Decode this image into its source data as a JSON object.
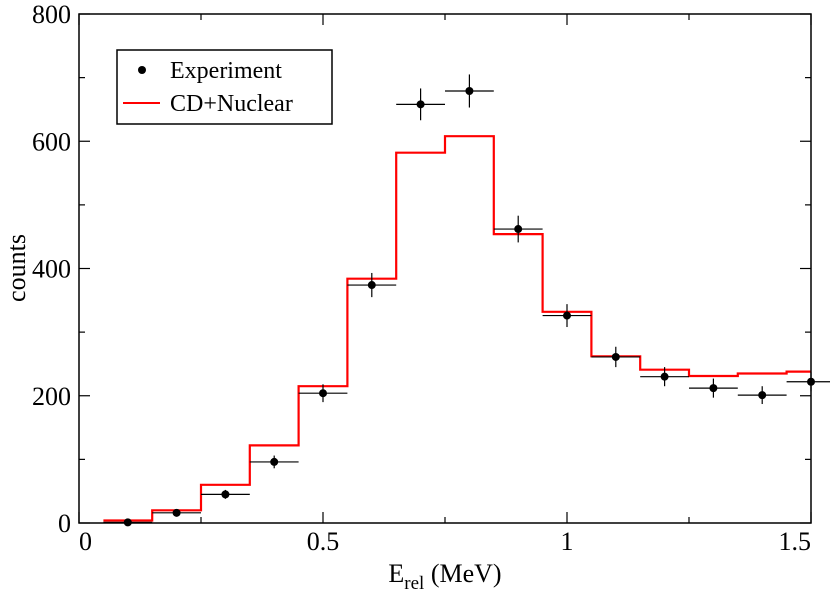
{
  "chart_data": {
    "type": "scatter+step",
    "xlabel_main": "E",
    "xlabel_sub": "rel",
    "xlabel_unit": "(MeV)",
    "ylabel": "counts",
    "xlim": [
      0,
      1.5
    ],
    "ylim": [
      0,
      800
    ],
    "x_ticks": [
      0,
      0.5,
      1,
      1.5
    ],
    "x_tick_labels": [
      "0",
      "0.5",
      "1",
      "1.5"
    ],
    "y_ticks": [
      0,
      200,
      400,
      600,
      800
    ],
    "y_tick_labels": [
      "0",
      "200",
      "400",
      "600",
      "800"
    ],
    "legend": {
      "placement": "top-left",
      "entries": [
        {
          "label": "Experiment",
          "marker": "dot",
          "color": "#000000"
        },
        {
          "label": "CD+Nuclear",
          "marker": "line",
          "color": "#ff0000"
        }
      ]
    },
    "series": [
      {
        "name": "Experiment",
        "kind": "points",
        "color": "#000000",
        "x_halfwidth": 0.05,
        "points": [
          {
            "x": 0.1,
            "y": 1,
            "yerr": 1
          },
          {
            "x": 0.2,
            "y": 16,
            "yerr": 4
          },
          {
            "x": 0.3,
            "y": 45,
            "yerr": 7
          },
          {
            "x": 0.4,
            "y": 96,
            "yerr": 10
          },
          {
            "x": 0.5,
            "y": 204,
            "yerr": 14
          },
          {
            "x": 0.6,
            "y": 374,
            "yerr": 19
          },
          {
            "x": 0.7,
            "y": 658,
            "yerr": 25
          },
          {
            "x": 0.8,
            "y": 679,
            "yerr": 26
          },
          {
            "x": 0.9,
            "y": 462,
            "yerr": 21
          },
          {
            "x": 1.0,
            "y": 326,
            "yerr": 18
          },
          {
            "x": 1.1,
            "y": 261,
            "yerr": 16
          },
          {
            "x": 1.2,
            "y": 230,
            "yerr": 15
          },
          {
            "x": 1.3,
            "y": 212,
            "yerr": 15
          },
          {
            "x": 1.4,
            "y": 201,
            "yerr": 14
          },
          {
            "x": 1.5,
            "y": 222,
            "yerr": 15
          }
        ]
      },
      {
        "name": "CD+Nuclear",
        "kind": "step",
        "color": "#ff0000",
        "bins": [
          {
            "x0": 0.05,
            "x1": 0.15,
            "y": 4
          },
          {
            "x0": 0.15,
            "x1": 0.25,
            "y": 20
          },
          {
            "x0": 0.25,
            "x1": 0.35,
            "y": 60
          },
          {
            "x0": 0.35,
            "x1": 0.45,
            "y": 122
          },
          {
            "x0": 0.45,
            "x1": 0.55,
            "y": 215
          },
          {
            "x0": 0.55,
            "x1": 0.65,
            "y": 384
          },
          {
            "x0": 0.65,
            "x1": 0.75,
            "y": 582
          },
          {
            "x0": 0.75,
            "x1": 0.85,
            "y": 608
          },
          {
            "x0": 0.85,
            "x1": 0.95,
            "y": 454
          },
          {
            "x0": 0.95,
            "x1": 1.05,
            "y": 332
          },
          {
            "x0": 1.05,
            "x1": 1.15,
            "y": 262
          },
          {
            "x0": 1.15,
            "x1": 1.25,
            "y": 241
          },
          {
            "x0": 1.25,
            "x1": 1.35,
            "y": 231
          },
          {
            "x0": 1.35,
            "x1": 1.45,
            "y": 235
          },
          {
            "x0": 1.45,
            "x1": 1.5,
            "y": 238
          }
        ]
      }
    ]
  }
}
